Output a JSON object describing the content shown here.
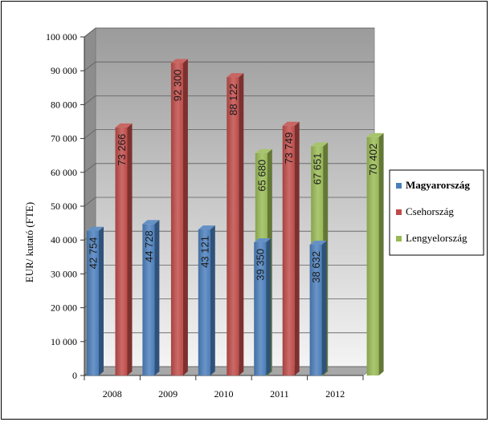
{
  "chart_data": {
    "type": "bar",
    "title": "",
    "xlabel": "",
    "ylabel": "EUR/ kutató (FTE)",
    "ylim": [
      0,
      100000
    ],
    "yticks": [
      "0",
      "10 000",
      "20 000",
      "30 000",
      "40 000",
      "50 000",
      "60 000",
      "70 000",
      "80 000",
      "90 000",
      "100 000"
    ],
    "categories": [
      "2008",
      "2009",
      "2010",
      "2011",
      "2012"
    ],
    "series": [
      {
        "name": "Magyarország",
        "color": "#4a7ebb",
        "values": [
          42754,
          44728,
          43121,
          39350,
          38632
        ],
        "labels": [
          "42 754",
          "44 728",
          "43 121",
          "39 350",
          "38 632"
        ]
      },
      {
        "name": "Csehország",
        "color": "#be4b48",
        "values": [
          73266,
          92300,
          88122,
          73749,
          null
        ],
        "labels": [
          "73 266",
          "92 300",
          "88 122",
          "73 749",
          ""
        ]
      },
      {
        "name": "Lengyelország",
        "color": "#98b954",
        "values": [
          null,
          null,
          65680,
          67651,
          70402
        ],
        "labels": [
          "",
          "",
          "65 680",
          "67 651",
          "70 402"
        ]
      }
    ],
    "grid": true,
    "legend": "right",
    "legend_bold": "Magyarország"
  }
}
